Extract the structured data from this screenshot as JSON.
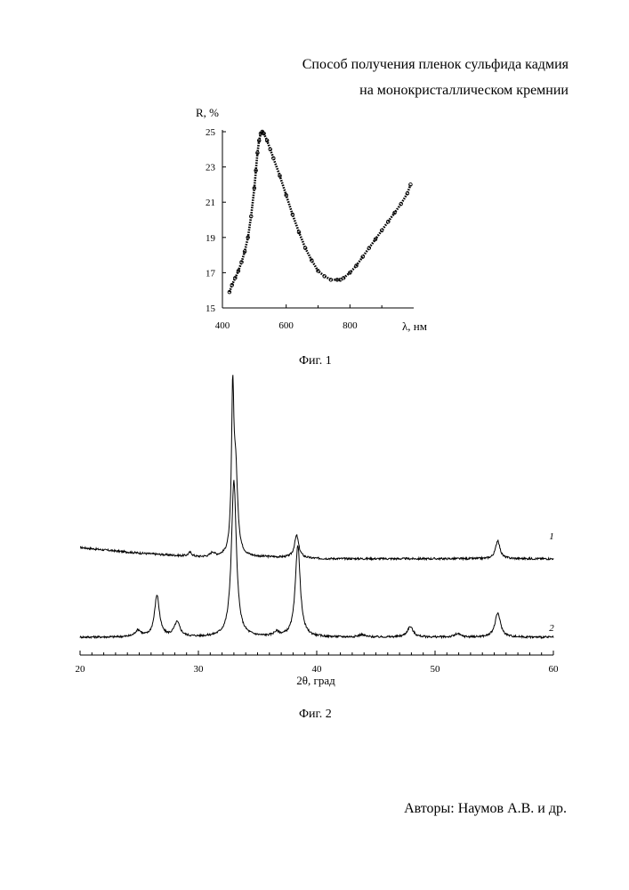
{
  "header": {
    "title_line1": "Способ получения пленок сульфида кадмия",
    "title_line2": "на монокристаллическом кремнии"
  },
  "footer": {
    "authors": "Авторы: Наумов А.В. и др."
  },
  "chart_data": [
    {
      "type": "scatter",
      "caption": "Фиг. 1",
      "title": "",
      "xlabel": "λ, нм",
      "ylabel": "R, %",
      "xlim": [
        400,
        1000
      ],
      "ylim": [
        15,
        25
      ],
      "x_ticks": [
        400,
        600,
        800
      ],
      "y_ticks": [
        15,
        17,
        19,
        21,
        23,
        25
      ],
      "grid": false,
      "marker": "open-circle",
      "series": [
        {
          "x": [
            422,
            430,
            440,
            450,
            460,
            470,
            480,
            490,
            500,
            505,
            510,
            515,
            520,
            525,
            530,
            540,
            550,
            560,
            580,
            600,
            620,
            640,
            660,
            680,
            700,
            720,
            740,
            760,
            770,
            780,
            800,
            820,
            840,
            860,
            880,
            900,
            920,
            940,
            960,
            980,
            990
          ],
          "y": [
            15.9,
            16.3,
            16.7,
            17.1,
            17.6,
            18.2,
            19.0,
            20.2,
            21.8,
            22.8,
            23.8,
            24.5,
            24.9,
            25.0,
            24.9,
            24.5,
            24.0,
            23.5,
            22.5,
            21.4,
            20.3,
            19.3,
            18.4,
            17.7,
            17.1,
            16.8,
            16.6,
            16.6,
            16.6,
            16.7,
            17.0,
            17.4,
            17.9,
            18.4,
            18.9,
            19.4,
            19.9,
            20.4,
            20.9,
            21.5,
            22.0
          ]
        }
      ]
    },
    {
      "type": "line",
      "caption": "Фиг. 2",
      "title": "",
      "xlabel": "2θ, град",
      "ylabel": "",
      "xlim": [
        20,
        60
      ],
      "x_ticks": [
        20,
        30,
        40,
        50,
        60
      ],
      "y_axis_visible": false,
      "grid": false,
      "series": [
        {
          "name": "1",
          "baseline": {
            "x": [
              20,
              22,
              25,
              28,
              30,
              33,
              36,
              40,
              45,
              50,
              55,
              60
            ],
            "y": [
              0.12,
              0.09,
              0.05,
              0.02,
              0.0,
              0.0,
              0.0,
              -0.02,
              -0.02,
              -0.02,
              -0.02,
              -0.02
            ]
          },
          "peaks": [
            {
              "x": 29.3,
              "height": 0.05,
              "width": 0.18
            },
            {
              "x": 31.2,
              "height": 0.05,
              "width": 0.2
            },
            {
              "x": 32.9,
              "height": 1.9,
              "width": 0.12
            },
            {
              "x": 33.15,
              "height": 1.0,
              "width": 0.2
            },
            {
              "x": 38.3,
              "height": 0.28,
              "width": 0.22
            },
            {
              "x": 55.3,
              "height": 0.23,
              "width": 0.22
            }
          ]
        },
        {
          "name": "2",
          "baseline": {
            "x": [
              20,
              25,
              30,
              35,
              40,
              45,
              50,
              55,
              60
            ],
            "y": [
              0.0,
              0.0,
              0.0,
              0.0,
              0.0,
              0.0,
              0.0,
              0.0,
              0.0
            ]
          },
          "peaks": [
            {
              "x": 24.9,
              "height": 0.08,
              "width": 0.3
            },
            {
              "x": 26.5,
              "height": 0.52,
              "width": 0.25
            },
            {
              "x": 28.2,
              "height": 0.18,
              "width": 0.3
            },
            {
              "x": 33.0,
              "height": 1.95,
              "width": 0.25
            },
            {
              "x": 36.6,
              "height": 0.05,
              "width": 0.3
            },
            {
              "x": 38.4,
              "height": 1.15,
              "width": 0.25
            },
            {
              "x": 43.8,
              "height": 0.03,
              "width": 0.3
            },
            {
              "x": 47.9,
              "height": 0.13,
              "width": 0.3
            },
            {
              "x": 51.9,
              "height": 0.04,
              "width": 0.3
            },
            {
              "x": 55.3,
              "height": 0.3,
              "width": 0.28
            }
          ]
        }
      ]
    }
  ]
}
